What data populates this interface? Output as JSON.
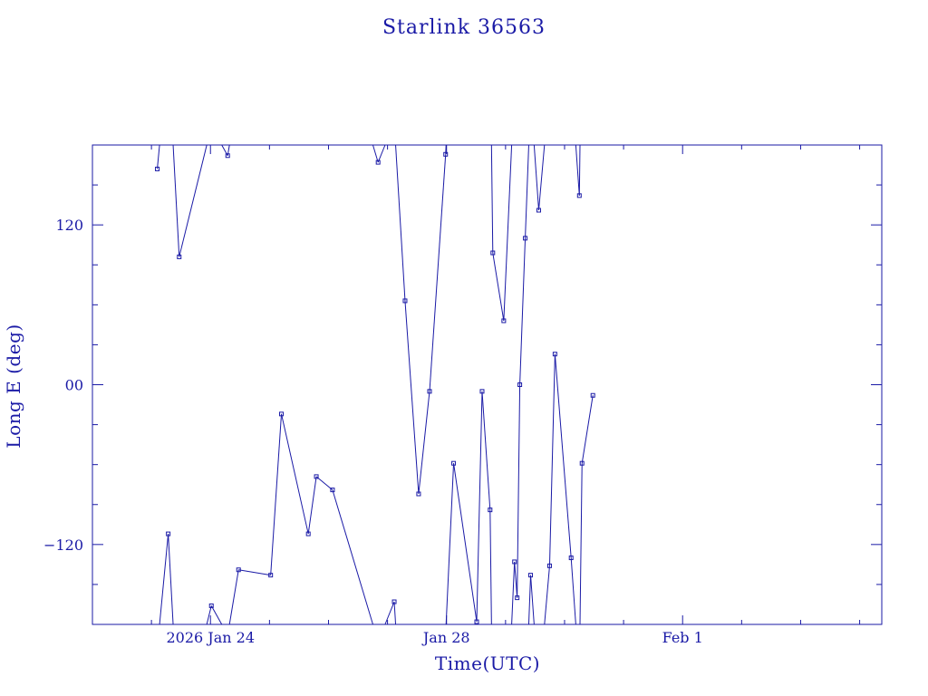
{
  "colors": {
    "ink": "#1a1aa6",
    "background": "#ffffff"
  },
  "chart_data": {
    "type": "line",
    "title": "Starlink 36563",
    "xlabel": "Time(UTC)",
    "ylabel": "Long E (deg)",
    "x_unit": "days",
    "x_range": [
      "2026-01-22T00:00",
      "2026-02-04T09:00"
    ],
    "ylim": [
      -180,
      180
    ],
    "y_wraps": true,
    "marker": "square",
    "grid": false,
    "x_major_ticks": [
      {
        "x": "2026-01-24T00:00",
        "label": "2026 Jan 24"
      },
      {
        "x": "2026-01-28T00:00",
        "label": "Jan 28"
      },
      {
        "x": "2026-02-01T00:00",
        "label": "Feb  1"
      }
    ],
    "y_major_ticks": [
      {
        "y": 120,
        "label": "120"
      },
      {
        "y": 0,
        "label": "00"
      },
      {
        "y": -120,
        "label": "−120"
      }
    ],
    "series": [
      {
        "points": [
          {
            "x": "2026-01-23T02:22",
            "y": 162
          },
          {
            "x": "2026-01-23T06:49",
            "y": -112
          },
          {
            "x": "2026-01-23T11:17",
            "y": 96
          },
          {
            "x": "2026-01-24T00:22",
            "y": -166
          },
          {
            "x": "2026-01-24T07:00",
            "y": 172
          },
          {
            "x": "2026-01-24T11:25",
            "y": -139
          },
          {
            "x": "2026-01-25T00:29",
            "y": -143
          },
          {
            "x": "2026-01-25T04:51",
            "y": -22
          },
          {
            "x": "2026-01-25T15:47",
            "y": -112
          },
          {
            "x": "2026-01-25T19:03",
            "y": -69
          },
          {
            "x": "2026-01-26T01:38",
            "y": -79
          },
          {
            "x": "2026-01-26T20:10",
            "y": 167
          },
          {
            "x": "2026-01-27T02:44",
            "y": -163
          },
          {
            "x": "2026-01-27T07:08",
            "y": 63
          },
          {
            "x": "2026-01-27T12:39",
            "y": -82
          },
          {
            "x": "2026-01-27T17:06",
            "y": -5
          },
          {
            "x": "2026-01-27T23:38",
            "y": 173
          },
          {
            "x": "2026-01-28T02:53",
            "y": -59
          },
          {
            "x": "2026-01-28T12:16",
            "y": -178
          },
          {
            "x": "2026-01-28T14:28",
            "y": -5
          },
          {
            "x": "2026-01-28T17:43",
            "y": -94
          },
          {
            "x": "2026-01-28T18:49",
            "y": 99
          },
          {
            "x": "2026-01-28T23:16",
            "y": 48
          },
          {
            "x": "2026-01-29T03:38",
            "y": -133
          },
          {
            "x": "2026-01-29T04:43",
            "y": -160
          },
          {
            "x": "2026-01-29T05:48",
            "y": 0
          },
          {
            "x": "2026-01-29T08:00",
            "y": 110
          },
          {
            "x": "2026-01-29T10:12",
            "y": -143
          },
          {
            "x": "2026-01-29T13:30",
            "y": 131
          },
          {
            "x": "2026-01-29T17:55",
            "y": -136
          },
          {
            "x": "2026-01-29T20:06",
            "y": 23
          },
          {
            "x": "2026-01-30T02:40",
            "y": -130
          },
          {
            "x": "2026-01-30T06:01",
            "y": 142
          },
          {
            "x": "2026-01-30T07:06",
            "y": -59
          },
          {
            "x": "2026-01-30T11:31",
            "y": -8
          }
        ]
      }
    ]
  }
}
